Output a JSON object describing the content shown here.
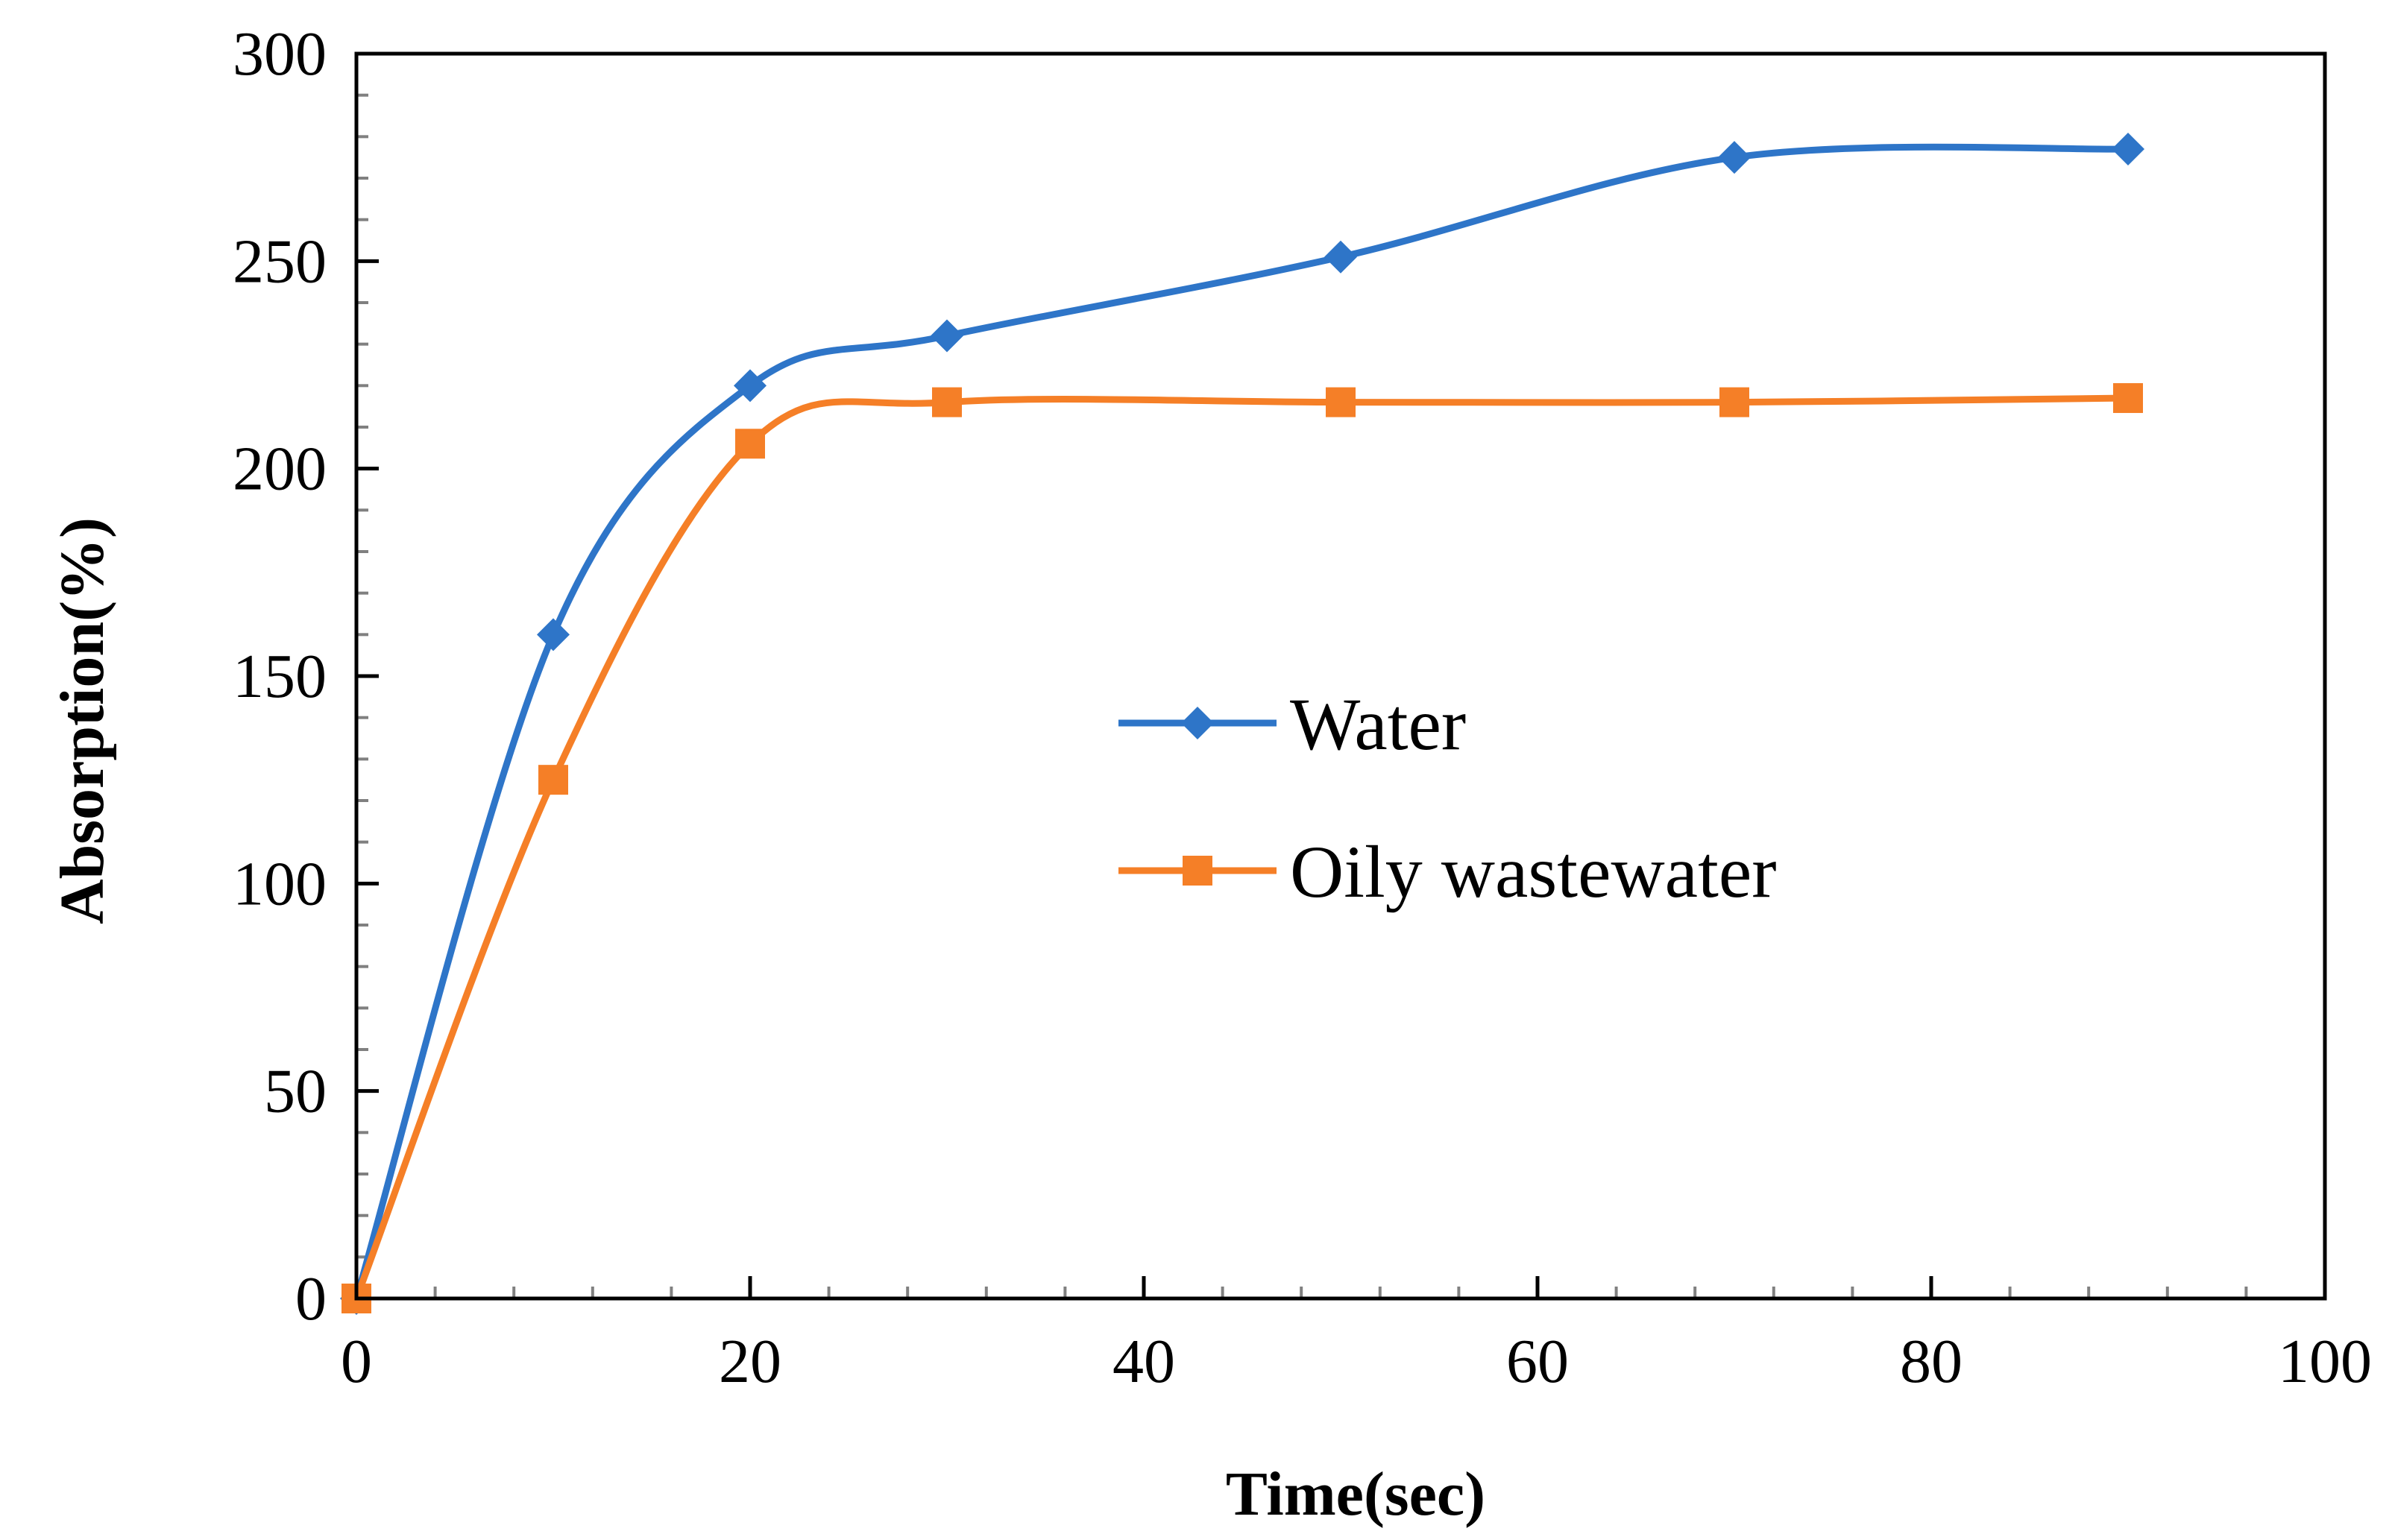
{
  "chart_data": {
    "type": "line",
    "title": "",
    "xlabel": "Time(sec)",
    "ylabel": "Absorption(%)",
    "xlim": [
      0,
      100
    ],
    "ylim": [
      0,
      300
    ],
    "x_ticks": [
      0,
      20,
      40,
      60,
      80,
      100
    ],
    "y_ticks": [
      0,
      50,
      100,
      150,
      200,
      250,
      300
    ],
    "x_minor_step": 4,
    "y_minor_step": 10,
    "grid": false,
    "smoothed": true,
    "legend_position": "center-right",
    "series": [
      {
        "name": "Water",
        "marker": "diamond",
        "color": "#2E75C8",
        "x": [
          0,
          10,
          20,
          30,
          50,
          70,
          90
        ],
        "values": [
          0,
          160,
          220,
          232,
          251,
          275,
          277
        ]
      },
      {
        "name": "Oily wastewater",
        "marker": "square",
        "color": "#F57F27",
        "x": [
          0,
          10,
          20,
          30,
          50,
          70,
          90
        ],
        "values": [
          0,
          125,
          206,
          216,
          216,
          216,
          217
        ]
      }
    ]
  }
}
